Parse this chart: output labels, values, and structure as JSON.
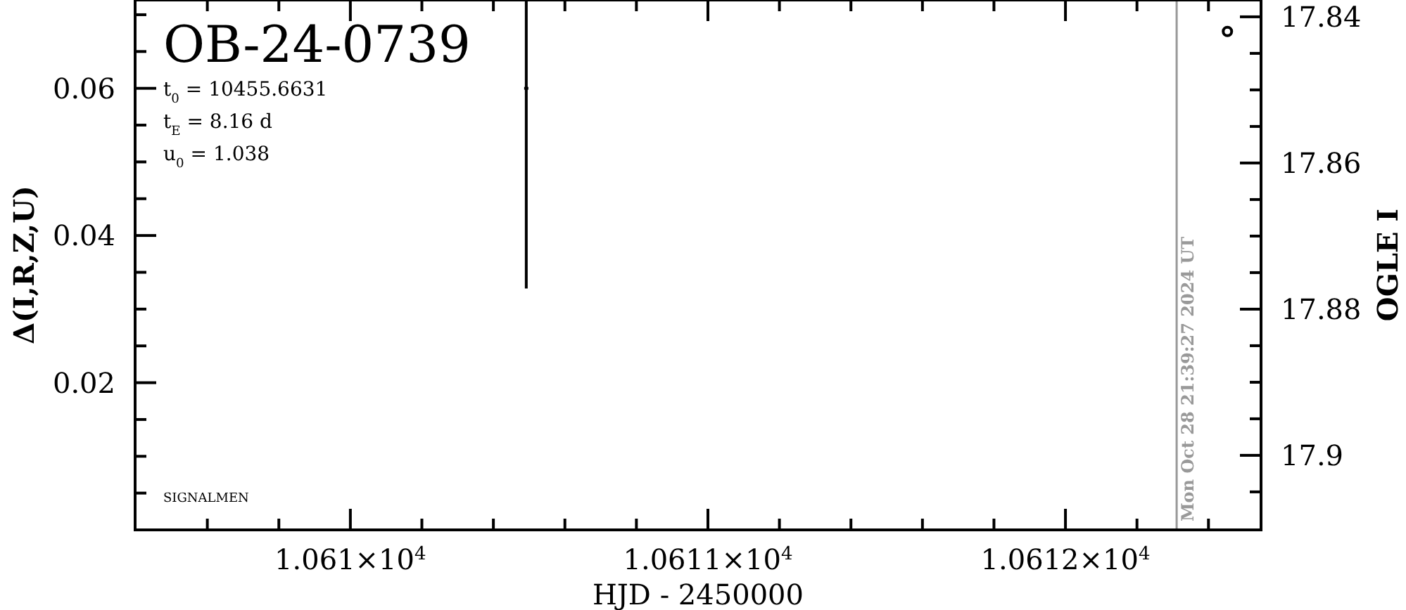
{
  "chart_data": {
    "type": "scatter",
    "title": "OB-24-0739",
    "xlabel": "HJD - 2450000",
    "ylabel": "Δ(I,R,Z,U)",
    "y2label": "OGLE I",
    "annotations": [
      "t$_{0}$ = 10455.6631",
      "t$_{E}$ = 8.16 d",
      "u$_{0}$ = 1.038",
      "SIGNALMEN",
      "Mon Oct 28 21:39:27 2024 UT"
    ],
    "xlim": [
      10609.398,
      10612.547
    ],
    "xticks": [
      {
        "value": 10609.6,
        "label": null
      },
      {
        "value": 10609.8,
        "label": null
      },
      {
        "value": 10610,
        "label": "1.061×10$^{4}$"
      },
      {
        "value": 10610.2,
        "label": null
      },
      {
        "value": 10610.4,
        "label": null
      },
      {
        "value": 10610.6,
        "label": null
      },
      {
        "value": 10610.8,
        "label": null
      },
      {
        "value": 10611,
        "label": "1.0611×10$^{4}$"
      },
      {
        "value": 10611.2,
        "label": null
      },
      {
        "value": 10611.4,
        "label": null
      },
      {
        "value": 10611.6,
        "label": null
      },
      {
        "value": 10611.8,
        "label": null
      },
      {
        "value": 10612,
        "label": "1.0612×10$^{4}$"
      },
      {
        "value": 10612.2,
        "label": null
      },
      {
        "value": 10612.4,
        "label": null
      }
    ],
    "ylim": [
      0,
      0.072
    ],
    "yticks": [
      {
        "value": 0.005,
        "label": null
      },
      {
        "value": 0.01,
        "label": null
      },
      {
        "value": 0.015,
        "label": null
      },
      0.02,
      {
        "value": 0.025,
        "label": null
      },
      {
        "value": 0.03,
        "label": null
      },
      {
        "value": 0.035,
        "label": null
      },
      0.04,
      {
        "value": 0.045,
        "label": null
      },
      {
        "value": 0.05,
        "label": null
      },
      {
        "value": 0.055,
        "label": null
      },
      0.06,
      {
        "value": 0.065,
        "label": null
      },
      {
        "value": 0.07,
        "label": null
      }
    ],
    "y2lim": [
      17.9102,
      17.8377
    ],
    "y2ticks": [
      17.84,
      {
        "value": 17.845,
        "label": null
      },
      {
        "value": 17.85,
        "label": null
      },
      {
        "value": 17.855,
        "label": null
      },
      17.86,
      {
        "value": 17.865,
        "label": null
      },
      {
        "value": 17.87,
        "label": null
      },
      {
        "value": 17.875,
        "label": null
      },
      17.88,
      {
        "value": 17.885,
        "label": null
      },
      {
        "value": 17.89,
        "label": null
      },
      {
        "value": 17.895,
        "label": null
      },
      17.9,
      {
        "value": 17.905,
        "label": null
      }
    ],
    "ref_lines": [
      {
        "axis": "x",
        "value": 10612.311,
        "color": "#999999"
      }
    ],
    "series": [
      {
        "color": "#000000",
        "x": [
          10610.492
        ],
        "values": [
          0.06
        ],
        "errors": [
          [
            0.0328,
            0.072
          ]
        ],
        "marker": "square"
      },
      {
        "color": "#000000",
        "axis": "y2",
        "x": [
          10612.453
        ],
        "values": [
          17.842
        ],
        "marker": "circle"
      }
    ]
  }
}
